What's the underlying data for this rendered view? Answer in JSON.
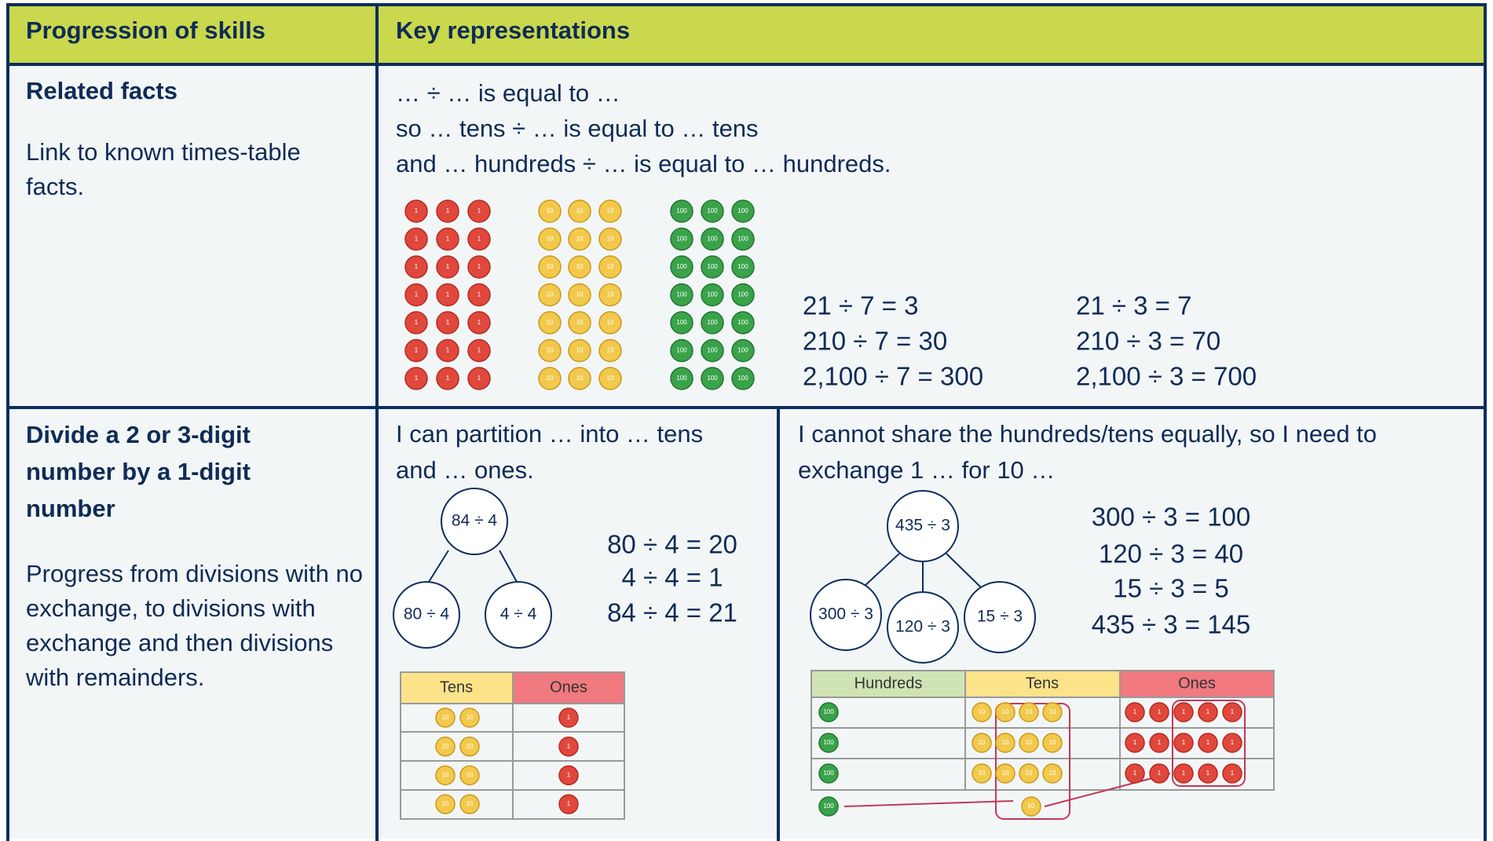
{
  "header": {
    "col1": "Progression of skills",
    "col2": "Key representations"
  },
  "counter_labels": {
    "ones": "1",
    "tens": "10",
    "hundreds": "100"
  },
  "rows": [
    {
      "skill": "Related facts",
      "description": "Link to known times-table facts.",
      "sentences": [
        "… ÷ … is equal to …",
        "so … tens ÷ … is equal to … tens",
        "and … hundreds ÷ … is equal to … hundreds."
      ],
      "equations_a": [
        "21 ÷ 7 = 3",
        "210 ÷ 7 = 30",
        "2,100 ÷ 7 = 300"
      ],
      "equations_b": [
        "21 ÷ 3 = 7",
        "210 ÷ 3 = 70",
        "2,100 ÷ 3 = 700"
      ]
    },
    {
      "skill": "Divide a 2 or 3-digit number by a 1-digit number",
      "description": "Progress from divisions with no exchange, to divisions with exchange and then divisions with remainders.",
      "left": {
        "text": "I can partition … into … tens and … ones.",
        "whole": "84 ÷ 4",
        "parts": [
          "80 ÷ 4",
          "4 ÷ 4"
        ],
        "equations": [
          "80 ÷ 4 = 20",
          "4 ÷ 4 = 1",
          "84 ÷ 4 = 21"
        ],
        "table_headers": [
          "Tens",
          "Ones"
        ]
      },
      "right": {
        "text": "I cannot share the hundreds/tens equally, so I need to exchange 1 … for 10 …",
        "whole": "435 ÷ 3",
        "parts": [
          "300 ÷ 3",
          "120 ÷ 3",
          "15 ÷ 3"
        ],
        "equations": [
          "300 ÷ 3 = 100",
          "120 ÷ 3 = 40",
          "15 ÷ 3 = 5",
          "435 ÷ 3 = 145"
        ],
        "table_headers": [
          "Hundreds",
          "Tens",
          "Ones"
        ]
      }
    }
  ]
}
